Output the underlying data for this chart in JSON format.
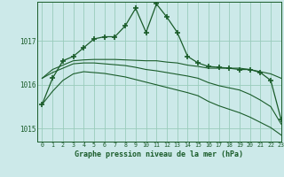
{
  "background_color": "#cce9e9",
  "grid_color": "#99ccbb",
  "line_color": "#1a5c2a",
  "title": "Graphe pression niveau de la mer (hPa)",
  "xlim": [
    -0.5,
    23
  ],
  "ylim": [
    1014.7,
    1017.9
  ],
  "yticks": [
    1015,
    1016,
    1017
  ],
  "xticks": [
    0,
    1,
    2,
    3,
    4,
    5,
    6,
    7,
    8,
    9,
    10,
    11,
    12,
    13,
    14,
    15,
    16,
    17,
    18,
    19,
    20,
    21,
    22,
    23
  ],
  "series": [
    {
      "x": [
        0,
        1,
        2,
        3,
        4,
        5,
        6,
        7,
        8,
        9,
        10,
        11,
        12,
        13,
        14,
        15,
        16,
        17,
        18,
        19,
        20,
        21,
        22,
        23
      ],
      "y": [
        1015.55,
        1016.15,
        1016.55,
        1016.65,
        1016.85,
        1017.05,
        1017.1,
        1017.1,
        1017.35,
        1017.75,
        1017.2,
        1017.85,
        1017.55,
        1017.2,
        1016.65,
        1016.5,
        1016.42,
        1016.4,
        1016.38,
        1016.35,
        1016.35,
        1016.28,
        1016.1,
        1015.2
      ],
      "marker": true
    },
    {
      "x": [
        0,
        1,
        2,
        3,
        4,
        5,
        6,
        7,
        8,
        9,
        10,
        11,
        12,
        13,
        14,
        15,
        16,
        17,
        18,
        19,
        20,
        21,
        22,
        23
      ],
      "y": [
        1016.15,
        1016.35,
        1016.45,
        1016.55,
        1016.57,
        1016.58,
        1016.58,
        1016.58,
        1016.57,
        1016.56,
        1016.55,
        1016.55,
        1016.52,
        1016.5,
        1016.45,
        1016.42,
        1016.38,
        1016.38,
        1016.38,
        1016.38,
        1016.35,
        1016.3,
        1016.25,
        1016.15
      ],
      "marker": false
    },
    {
      "x": [
        0,
        1,
        2,
        3,
        4,
        5,
        6,
        7,
        8,
        9,
        10,
        11,
        12,
        13,
        14,
        15,
        16,
        17,
        18,
        19,
        20,
        21,
        22,
        23
      ],
      "y": [
        1016.15,
        1016.28,
        1016.38,
        1016.48,
        1016.5,
        1016.5,
        1016.48,
        1016.46,
        1016.44,
        1016.4,
        1016.35,
        1016.32,
        1016.28,
        1016.24,
        1016.2,
        1016.15,
        1016.05,
        1015.98,
        1015.93,
        1015.88,
        1015.78,
        1015.65,
        1015.5,
        1015.1
      ],
      "marker": false
    },
    {
      "x": [
        0,
        1,
        2,
        3,
        4,
        5,
        6,
        7,
        8,
        9,
        10,
        11,
        12,
        13,
        14,
        15,
        16,
        17,
        18,
        19,
        20,
        21,
        22,
        23
      ],
      "y": [
        1015.55,
        1015.85,
        1016.1,
        1016.25,
        1016.3,
        1016.28,
        1016.26,
        1016.22,
        1016.18,
        1016.12,
        1016.06,
        1016.0,
        1015.94,
        1015.88,
        1015.82,
        1015.75,
        1015.62,
        1015.52,
        1015.44,
        1015.36,
        1015.26,
        1015.14,
        1015.02,
        1014.85
      ],
      "marker": false
    }
  ]
}
